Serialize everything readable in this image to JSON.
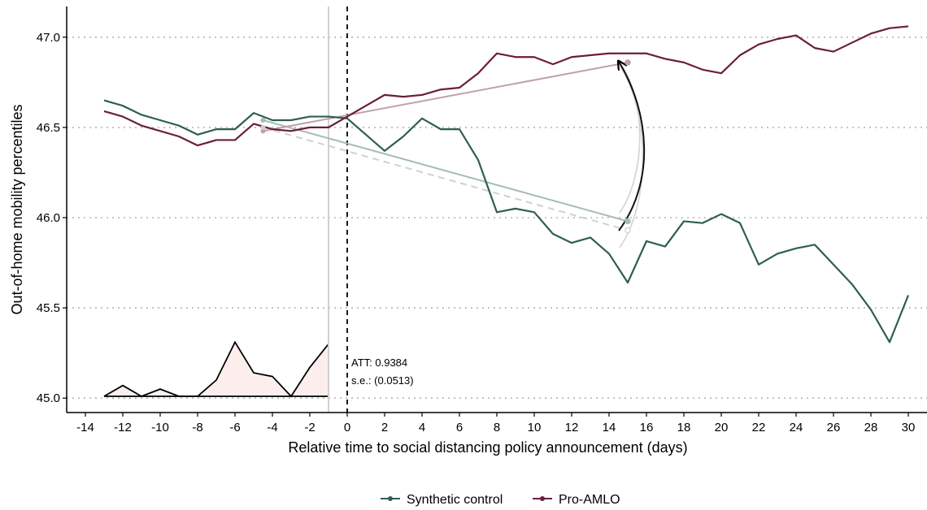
{
  "chart_data": {
    "type": "line",
    "xlabel": "Relative time to social distancing policy announcement (days)",
    "ylabel": "Out-of-home mobility percentiles",
    "xlim": [
      -15,
      31
    ],
    "ylim": [
      44.92,
      47.17
    ],
    "xticks": [
      -14,
      -12,
      -10,
      -8,
      -6,
      -4,
      -2,
      0,
      2,
      4,
      6,
      8,
      10,
      12,
      14,
      16,
      18,
      20,
      22,
      24,
      26,
      28,
      30
    ],
    "yticks": [
      45.0,
      45.5,
      46.0,
      46.5,
      47.0
    ],
    "ytick_labels": [
      "45.0",
      "45.5",
      "46.0",
      "46.5",
      "47.0"
    ],
    "grid": "horizontal dotted",
    "legend_position": "bottom",
    "series": [
      {
        "name": "Synthetic control",
        "color": "#2f5f4f",
        "x": [
          -13,
          -12,
          -11,
          -10,
          -9,
          -8,
          -7,
          -6,
          -5,
          -4,
          -3,
          -2,
          -1,
          0,
          1,
          2,
          3,
          4,
          5,
          6,
          7,
          8,
          9,
          10,
          11,
          12,
          13,
          14,
          15,
          16,
          17,
          18,
          19,
          20,
          21,
          22,
          23,
          24,
          25,
          26,
          27,
          28,
          29,
          30
        ],
        "y": [
          46.65,
          46.62,
          46.57,
          46.54,
          46.51,
          46.46,
          46.49,
          46.49,
          46.58,
          46.54,
          46.54,
          46.56,
          46.56,
          46.55,
          46.46,
          46.37,
          46.45,
          46.55,
          46.49,
          46.49,
          46.32,
          46.03,
          46.05,
          46.03,
          45.91,
          45.86,
          45.89,
          45.8,
          45.64,
          45.87,
          45.84,
          45.98,
          45.97,
          46.02,
          45.97,
          45.74,
          45.8,
          45.83,
          45.85,
          45.74,
          45.63,
          45.49,
          45.31,
          45.57
        ]
      },
      {
        "name": "Pro-AMLO",
        "color": "#6b1d3c",
        "x": [
          -13,
          -12,
          -11,
          -10,
          -9,
          -8,
          -7,
          -6,
          -5,
          -4,
          -3,
          -2,
          -1,
          0,
          1,
          2,
          3,
          4,
          5,
          6,
          7,
          8,
          9,
          10,
          11,
          12,
          13,
          14,
          15,
          16,
          17,
          18,
          19,
          20,
          21,
          22,
          23,
          24,
          25,
          26,
          27,
          28,
          29,
          30
        ],
        "y": [
          46.59,
          46.56,
          46.51,
          46.48,
          46.45,
          46.4,
          46.43,
          46.43,
          46.52,
          46.49,
          46.48,
          46.5,
          46.5,
          46.56,
          46.62,
          46.68,
          46.67,
          46.68,
          46.71,
          46.72,
          46.8,
          46.91,
          46.89,
          46.89,
          46.85,
          46.89,
          46.9,
          46.91,
          46.91,
          46.91,
          46.88,
          46.86,
          46.82,
          46.8,
          46.9,
          46.96,
          46.99,
          47.01,
          46.94,
          46.92,
          46.97,
          47.02,
          47.05,
          47.06
        ]
      }
    ],
    "pre_period_gap": {
      "x": [
        -13,
        -12,
        -11,
        -10,
        -9,
        -8,
        -7,
        -6,
        -5,
        -4,
        -3,
        -2,
        -1
      ],
      "y": [
        45.01,
        45.07,
        45.01,
        45.05,
        45.01,
        45.01,
        45.1,
        45.31,
        45.14,
        45.12,
        45.01,
        45.17,
        45.3
      ],
      "baseline": 45.01,
      "fill": "#fdeeee"
    },
    "vertical_lines": [
      {
        "x": -1,
        "style": "solid",
        "color": "#d0d0d0"
      },
      {
        "x": 0,
        "style": "dashed",
        "color": "#000000"
      }
    ],
    "comparison_lines": [
      {
        "from": [
          -4.5,
          46.54
        ],
        "to": [
          15,
          45.98
        ],
        "color": "#a6bdb5",
        "style": "solid"
      },
      {
        "from": [
          -4.5,
          46.48
        ],
        "to": [
          15,
          46.86
        ],
        "color": "#c0a0ab",
        "style": "solid"
      },
      {
        "from": [
          -4.5,
          46.5
        ],
        "to": [
          15,
          45.93
        ],
        "color": "#d0d0d0",
        "style": "dashed"
      }
    ],
    "annotations": [
      {
        "text": "ATT: 0.9384",
        "x": 1,
        "y": 45.2
      },
      {
        "text": "s.e.: (0.0513)",
        "x": 1,
        "y": 45.1
      }
    ]
  }
}
